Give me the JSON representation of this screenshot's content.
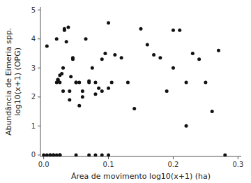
{
  "chart_data": {
    "type": "scatter",
    "xlabel": "Área de movimento log10(x+1) (ha)",
    "ylabel": "Abundância de Eimeria spp.\nlog10(x+1) (OPG)",
    "color": "#111111",
    "x": [
      0.005,
      0.01,
      0.015,
      0.02,
      0.025,
      0.025,
      0.025,
      0.02,
      0.022,
      0.022,
      0.022,
      0.025,
      0.025,
      0.028,
      0.03,
      0.03,
      0.032,
      0.032,
      0.035,
      0.038,
      0.04,
      0.04,
      0.042,
      0.045,
      0.045,
      0.05,
      0.05,
      0.055,
      0.055,
      0.06,
      0.06,
      0.065,
      0.07,
      0.07,
      0.075,
      0.08,
      0.08,
      0.085,
      0.09,
      0.09,
      0.095,
      0.1,
      0.1,
      0.105,
      0.11,
      0.12,
      0.13,
      0.14,
      0.15,
      0.16,
      0.17,
      0.18,
      0.19,
      0.2,
      0.2,
      0.21,
      0.22,
      0.22,
      0.23,
      0.24,
      0.25,
      0.26,
      0.27,
      0.28,
      0.0,
      0.005,
      0.01,
      0.015,
      0.02,
      0.05,
      0.07,
      0.08,
      0.09,
      0.1
    ],
    "values": [
      0.0,
      0.0,
      0.0,
      0.0,
      0.0,
      0.0,
      0.0,
      4.0,
      2.6,
      2.6,
      2.55,
      2.75,
      2.5,
      2.8,
      3.0,
      2.2,
      4.3,
      4.35,
      3.9,
      4.4,
      2.2,
      1.9,
      2.7,
      3.3,
      3.35,
      2.5,
      2.5,
      2.5,
      1.7,
      2.2,
      2.0,
      4.0,
      2.55,
      2.5,
      3.0,
      2.5,
      2.1,
      2.3,
      2.2,
      3.3,
      3.5,
      4.55,
      2.3,
      2.5,
      3.45,
      3.35,
      2.5,
      1.6,
      4.35,
      3.8,
      3.45,
      3.35,
      2.2,
      4.3,
      3.0,
      4.3,
      2.5,
      1.0,
      3.5,
      3.3,
      2.5,
      1.5,
      3.6,
      0.0,
      0.0,
      3.75,
      0.0,
      0.0,
      2.5,
      0.0,
      0.0,
      0.0,
      0.0,
      0.0
    ],
    "xlim": [
      -0.005,
      0.305
    ],
    "ylim": [
      -0.05,
      5.1
    ],
    "xticks": [
      {
        "value": 0.0,
        "label": "0.0"
      },
      0.1,
      0.2,
      0.3
    ],
    "yticks": [
      0,
      1,
      2,
      3,
      4,
      5
    ]
  }
}
